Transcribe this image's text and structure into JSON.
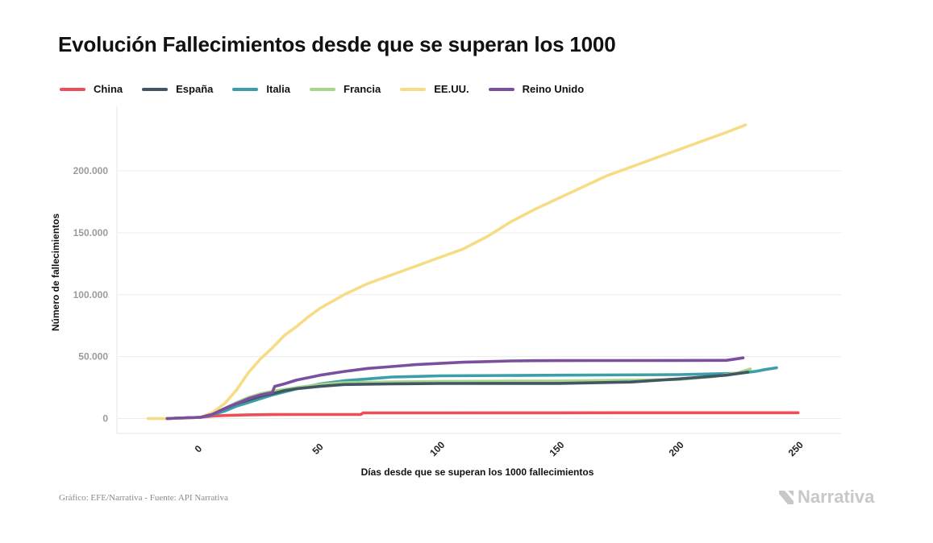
{
  "chart_data": {
    "type": "line",
    "title": "Evolución Fallecimientos desde que se superan los 1000",
    "xlabel": "Días desde que se superan los 1000 fallecimientos",
    "ylabel": "Número de fallecimientos",
    "xlim": [
      -35,
      268
    ],
    "ylim": [
      -12000,
      252000
    ],
    "x_ticks": [
      0,
      50,
      100,
      150,
      200,
      250
    ],
    "x_tick_labels": [
      "0",
      "50",
      "100",
      "150",
      "200",
      "250"
    ],
    "y_ticks": [
      0,
      50000,
      100000,
      150000,
      200000
    ],
    "y_tick_labels": [
      "0",
      "50.000",
      "100.000",
      "150.000",
      "200.000"
    ],
    "grid": true,
    "legend_position": "top",
    "series": [
      {
        "name": "China",
        "color": "#ef4e57",
        "x": [
          -14,
          0,
          5,
          10,
          20,
          30,
          40,
          50,
          60,
          67,
          68,
          80,
          100,
          150,
          200,
          250
        ],
        "y": [
          0,
          1000,
          2000,
          2500,
          3000,
          3200,
          3300,
          3300,
          3300,
          3300,
          4600,
          4600,
          4600,
          4630,
          4700,
          4740
        ]
      },
      {
        "name": "España",
        "color": "#425563",
        "x": [
          -14,
          0,
          5,
          10,
          15,
          20,
          25,
          30,
          35,
          40,
          50,
          60,
          80,
          100,
          150,
          180,
          200,
          220,
          229
        ],
        "y": [
          0,
          1000,
          3500,
          8000,
          12000,
          15000,
          18000,
          20000,
          22500,
          24000,
          26000,
          27500,
          28000,
          28300,
          28400,
          29500,
          32000,
          35000,
          37500
        ]
      },
      {
        "name": "Italia",
        "color": "#3c9ea8",
        "x": [
          -14,
          0,
          5,
          10,
          15,
          20,
          25,
          30,
          35,
          40,
          50,
          60,
          70,
          80,
          90,
          100,
          150,
          200,
          225,
          232,
          236,
          241
        ],
        "y": [
          0,
          1000,
          3000,
          6000,
          10000,
          13000,
          16000,
          19000,
          21500,
          24000,
          28000,
          30500,
          32000,
          33500,
          34000,
          34500,
          35000,
          35500,
          36500,
          38000,
          39500,
          41000
        ]
      },
      {
        "name": "Francia",
        "color": "#a8d58c",
        "x": [
          -14,
          0,
          5,
          10,
          15,
          20,
          25,
          30,
          35,
          40,
          50,
          60,
          100,
          150,
          200,
          215,
          225,
          230
        ],
        "y": [
          0,
          1000,
          3500,
          8000,
          13000,
          17000,
          20000,
          22000,
          23500,
          25000,
          27500,
          29000,
          30000,
          30300,
          31500,
          34000,
          37000,
          40000
        ]
      },
      {
        "name": "EE.UU.",
        "color": "#f6dc84",
        "x": [
          -22,
          -14,
          -5,
          0,
          5,
          10,
          15,
          20,
          25,
          30,
          35,
          40,
          45,
          50,
          60,
          70,
          80,
          90,
          100,
          110,
          120,
          130,
          140,
          150,
          160,
          170,
          180,
          190,
          200,
          210,
          220,
          228
        ],
        "y": [
          0,
          0,
          500,
          1000,
          5000,
          12000,
          23000,
          37000,
          48000,
          57000,
          67000,
          74000,
          82000,
          89000,
          100000,
          109000,
          116000,
          123000,
          130000,
          137000,
          147000,
          159000,
          169000,
          178000,
          187000,
          196000,
          203000,
          210000,
          217000,
          224000,
          231000,
          237000
        ]
      },
      {
        "name": "Reino Unido",
        "color": "#7b4fa0",
        "x": [
          -14,
          0,
          5,
          10,
          15,
          20,
          25,
          30,
          31,
          35,
          40,
          50,
          60,
          70,
          80,
          90,
          100,
          110,
          120,
          130,
          140,
          150,
          200,
          220,
          227
        ],
        "y": [
          0,
          1000,
          3500,
          8000,
          12000,
          16000,
          19000,
          21000,
          26000,
          28000,
          31000,
          35000,
          38000,
          40500,
          42000,
          43500,
          44500,
          45500,
          46000,
          46500,
          46700,
          46800,
          46900,
          47000,
          49000
        ]
      }
    ]
  },
  "footer": {
    "source": "Gráfico: EFE/Narrativa - Fuente: API Narrativa"
  },
  "brand": {
    "name": "Narrativa"
  }
}
